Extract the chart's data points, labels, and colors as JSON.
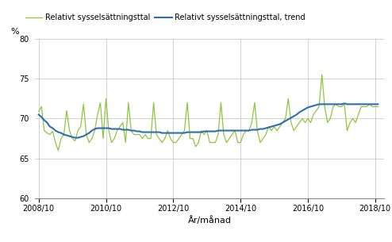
{
  "ylabel": "%",
  "xlabel": "År/månad",
  "legend_green_label": "Relativt sysselsättningsttal",
  "legend_blue_label": "Relativt sysselsättningsttal, trend",
  "ylim": [
    60,
    80
  ],
  "yticks": [
    60,
    65,
    70,
    75,
    80
  ],
  "xtick_labels": [
    "2008/10",
    "2010/10",
    "2012/10",
    "2014/10",
    "2016/10",
    "2018/10"
  ],
  "green_color": "#8dc63f",
  "blue_color": "#2e6db4",
  "background_color": "#ffffff",
  "grid_color": "#c0c0c0",
  "raw": [
    70.9,
    71.5,
    68.5,
    68.2,
    68.0,
    68.4,
    67.0,
    66.0,
    67.5,
    68.0,
    71.0,
    68.5,
    67.5,
    67.2,
    68.5,
    69.0,
    71.8,
    68.0,
    67.0,
    67.5,
    68.5,
    70.5,
    72.0,
    67.5,
    72.5,
    68.5,
    67.0,
    67.5,
    68.5,
    69.0,
    69.5,
    67.0,
    72.0,
    68.5,
    68.0,
    68.0,
    68.0,
    67.5,
    68.0,
    67.5,
    67.5,
    72.0,
    68.0,
    67.5,
    67.0,
    67.5,
    68.5,
    67.5,
    67.0,
    67.0,
    67.5,
    68.0,
    68.5,
    72.0,
    67.5,
    67.5,
    66.5,
    67.0,
    68.5,
    68.0,
    68.5,
    67.0,
    67.0,
    67.0,
    68.0,
    72.0,
    68.0,
    67.0,
    67.5,
    68.0,
    68.5,
    67.0,
    67.0,
    68.0,
    68.5,
    68.5,
    69.5,
    72.0,
    68.5,
    67.0,
    67.5,
    68.0,
    69.0,
    68.5,
    69.0,
    68.5,
    69.0,
    69.5,
    70.0,
    72.5,
    69.5,
    68.5,
    69.0,
    69.5,
    70.0,
    69.5,
    70.0,
    69.5,
    70.5,
    71.0,
    71.5,
    75.5,
    71.5,
    69.5,
    70.0,
    71.5,
    71.8,
    71.5,
    71.5,
    71.8,
    68.5,
    69.5,
    70.0,
    69.5,
    70.5,
    71.5,
    71.5,
    71.5,
    71.8,
    71.5,
    71.5,
    71.5
  ],
  "trend": [
    70.5,
    70.2,
    69.8,
    69.5,
    69.0,
    68.8,
    68.5,
    68.3,
    68.2,
    68.0,
    67.9,
    67.8,
    67.7,
    67.6,
    67.6,
    67.7,
    67.8,
    68.0,
    68.2,
    68.5,
    68.7,
    68.8,
    68.8,
    68.8,
    68.8,
    68.8,
    68.7,
    68.7,
    68.7,
    68.7,
    68.6,
    68.6,
    68.6,
    68.5,
    68.5,
    68.4,
    68.4,
    68.3,
    68.3,
    68.3,
    68.3,
    68.3,
    68.3,
    68.3,
    68.2,
    68.2,
    68.2,
    68.2,
    68.2,
    68.2,
    68.2,
    68.2,
    68.2,
    68.3,
    68.3,
    68.3,
    68.3,
    68.3,
    68.3,
    68.4,
    68.4,
    68.4,
    68.4,
    68.4,
    68.5,
    68.5,
    68.5,
    68.5,
    68.5,
    68.5,
    68.5,
    68.5,
    68.5,
    68.5,
    68.5,
    68.5,
    68.6,
    68.6,
    68.6,
    68.7,
    68.7,
    68.8,
    68.9,
    69.0,
    69.1,
    69.2,
    69.3,
    69.5,
    69.7,
    69.9,
    70.1,
    70.3,
    70.5,
    70.8,
    71.0,
    71.2,
    71.4,
    71.5,
    71.6,
    71.7,
    71.8,
    71.8,
    71.8,
    71.8,
    71.8,
    71.8,
    71.8,
    71.8,
    71.8,
    71.9,
    71.8,
    71.8,
    71.8,
    71.8,
    71.8,
    71.8,
    71.8,
    71.8,
    71.8,
    71.8,
    71.8,
    71.8
  ]
}
